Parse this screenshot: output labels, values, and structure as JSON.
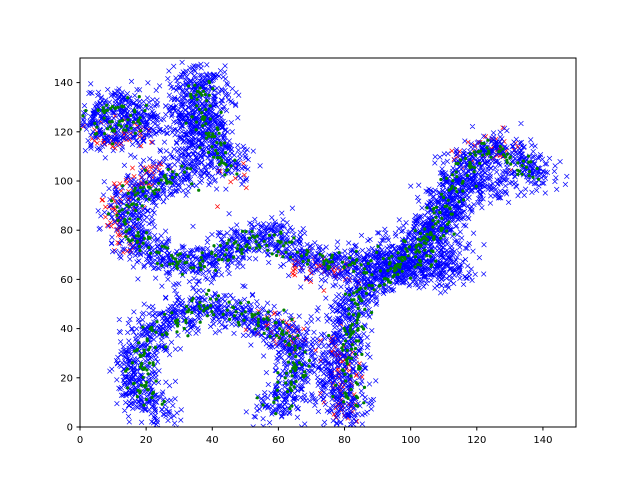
{
  "chart_data": {
    "type": "scatter",
    "title": "",
    "xlabel": "",
    "ylabel": "",
    "xlim": [
      0,
      150
    ],
    "ylim": [
      0,
      150
    ],
    "xticks": [
      0,
      20,
      40,
      60,
      80,
      100,
      120,
      140
    ],
    "yticks": [
      0,
      20,
      40,
      60,
      80,
      100,
      120,
      140
    ],
    "grid": false,
    "legend": "none",
    "series": [
      {
        "color": "#ff0000",
        "marker": "x",
        "point_size": 2.2,
        "spread": 5.2,
        "density": 2.2,
        "paths": [
          [
            [
              4,
              122
            ],
            [
              6,
              118
            ],
            [
              10,
              116
            ],
            [
              14,
              117
            ],
            [
              18,
              120
            ],
            [
              19,
              125
            ]
          ],
          [
            [
              26,
              104
            ],
            [
              18,
              101
            ],
            [
              13,
              95
            ],
            [
              10,
              88
            ],
            [
              11,
              80
            ],
            [
              15,
              74
            ]
          ],
          [
            [
              46,
              104
            ],
            [
              46,
              100
            ]
          ],
          [
            [
              55,
              43
            ],
            [
              60,
              41
            ],
            [
              64,
              37
            ],
            [
              66,
              32
            ]
          ],
          [
            [
              64,
              66
            ],
            [
              72,
              64
            ],
            [
              80,
              63
            ],
            [
              85,
              64
            ]
          ],
          [
            [
              79,
              38
            ],
            [
              78,
              25
            ],
            [
              79,
              12
            ],
            [
              80,
              3
            ]
          ],
          [
            [
              116,
              109
            ],
            [
              120,
              113
            ],
            [
              126,
              114
            ],
            [
              130,
              110
            ]
          ]
        ]
      },
      {
        "color": "#0000ff",
        "marker": "x",
        "point_size": 2.4,
        "spread": 7.2,
        "density": 9,
        "paths": [
          [
            [
              5,
              127
            ],
            [
              9,
              131
            ],
            [
              14,
              132
            ],
            [
              18,
              129
            ],
            [
              19,
              124
            ],
            [
              16,
              119
            ],
            [
              10,
              118
            ],
            [
              6,
              121
            ],
            [
              5,
              127
            ]
          ],
          [
            [
              47,
              103
            ],
            [
              44,
              110
            ],
            [
              40,
              118
            ],
            [
              39,
              128
            ],
            [
              38,
              136
            ],
            [
              36,
              142
            ],
            [
              33,
              140
            ],
            [
              32,
              130
            ],
            [
              34,
              118
            ],
            [
              35,
              110
            ],
            [
              33,
              104
            ],
            [
              28,
              101
            ],
            [
              20,
              99
            ],
            [
              15,
              94
            ],
            [
              14,
              86
            ],
            [
              16,
              78
            ],
            [
              22,
              70
            ],
            [
              30,
              66
            ],
            [
              38,
              66
            ],
            [
              44,
              70
            ],
            [
              48,
              75
            ],
            [
              52,
              77
            ],
            [
              56,
              78
            ],
            [
              60,
              77
            ],
            [
              63,
              73
            ],
            [
              66,
              69
            ],
            [
              72,
              67
            ],
            [
              80,
              66
            ],
            [
              88,
              67
            ],
            [
              96,
              70
            ],
            [
              102,
              74
            ],
            [
              106,
              80
            ],
            [
              110,
              86
            ],
            [
              112,
              92
            ],
            [
              114,
              100
            ],
            [
              116,
              106
            ],
            [
              120,
              112
            ],
            [
              126,
              114
            ],
            [
              132,
              109
            ],
            [
              138,
              104
            ],
            [
              141,
              101
            ]
          ],
          [
            [
              128,
              102
            ],
            [
              124,
              98
            ],
            [
              118,
              97
            ],
            [
              112,
              97
            ]
          ],
          [
            [
              110,
              90
            ],
            [
              108,
              80
            ],
            [
              106,
              72
            ],
            [
              100,
              66
            ],
            [
              92,
              62
            ],
            [
              86,
              57
            ],
            [
              82,
              50
            ],
            [
              80,
              40
            ],
            [
              79,
              28
            ],
            [
              79,
              16
            ],
            [
              80,
              6
            ],
            [
              84,
              4
            ]
          ],
          [
            [
              42,
              48
            ],
            [
              36,
              49
            ],
            [
              28,
              46
            ],
            [
              22,
              39
            ],
            [
              18,
              30
            ],
            [
              17,
              20
            ],
            [
              18,
              12
            ],
            [
              22,
              7
            ],
            [
              26,
              8
            ]
          ],
          [
            [
              42,
              48
            ],
            [
              50,
              46
            ],
            [
              58,
              42
            ],
            [
              64,
              36
            ],
            [
              67,
              28
            ],
            [
              66,
              18
            ],
            [
              62,
              10
            ],
            [
              57,
              6
            ]
          ],
          [
            [
              88,
              64
            ],
            [
              95,
              65
            ],
            [
              102,
              66
            ],
            [
              108,
              62
            ],
            [
              112,
              64
            ],
            [
              115,
              70
            ]
          ]
        ]
      },
      {
        "color": "#008000",
        "marker": "dot",
        "point_size": 1.6,
        "spread": 4.6,
        "density": 1.8,
        "paths": [
          [
            [
              6,
              127
            ],
            [
              10,
              130
            ],
            [
              14,
              130
            ],
            [
              17,
              126
            ],
            [
              14,
              121
            ],
            [
              9,
              121
            ],
            [
              6,
              127
            ]
          ],
          [
            [
              46,
              103
            ],
            [
              42,
              112
            ],
            [
              38,
              122
            ],
            [
              37,
              134
            ],
            [
              36,
              141
            ]
          ],
          [
            [
              33,
              104
            ],
            [
              26,
              101
            ],
            [
              18,
              97
            ],
            [
              14,
              88
            ],
            [
              16,
              79
            ],
            [
              22,
              71
            ],
            [
              30,
              67
            ],
            [
              38,
              67
            ],
            [
              46,
              72
            ],
            [
              54,
              77
            ],
            [
              62,
              74
            ],
            [
              70,
              68
            ],
            [
              80,
              67
            ],
            [
              90,
              67
            ],
            [
              98,
              70
            ],
            [
              106,
              78
            ],
            [
              112,
              92
            ],
            [
              116,
              105
            ],
            [
              122,
              112
            ],
            [
              130,
              110
            ],
            [
              138,
              103
            ]
          ],
          [
            [
              108,
              80
            ],
            [
              104,
              70
            ],
            [
              96,
              64
            ],
            [
              88,
              60
            ],
            [
              83,
              50
            ],
            [
              81,
              38
            ],
            [
              81,
              24
            ],
            [
              81,
              10
            ]
          ],
          [
            [
              42,
              49
            ],
            [
              32,
              47
            ],
            [
              24,
              40
            ],
            [
              19,
              30
            ],
            [
              19,
              18
            ],
            [
              23,
              9
            ]
          ],
          [
            [
              42,
              49
            ],
            [
              52,
              46
            ],
            [
              60,
              41
            ],
            [
              65,
              32
            ],
            [
              64,
              20
            ],
            [
              59,
              9
            ]
          ]
        ]
      }
    ]
  }
}
